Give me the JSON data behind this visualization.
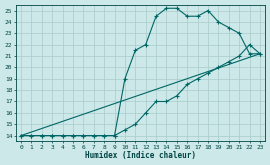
{
  "xlabel": "Humidex (Indice chaleur)",
  "background_color": "#cce8e8",
  "grid_color": "#aacccc",
  "line_color": "#006666",
  "xlim": [
    -0.5,
    23.5
  ],
  "ylim": [
    13.5,
    25.5
  ],
  "xticks": [
    0,
    1,
    2,
    3,
    4,
    5,
    6,
    7,
    8,
    9,
    10,
    11,
    12,
    13,
    14,
    15,
    16,
    17,
    18,
    19,
    20,
    21,
    22,
    23
  ],
  "yticks": [
    14,
    15,
    16,
    17,
    18,
    19,
    20,
    21,
    22,
    23,
    24,
    25
  ],
  "line1_x": [
    0,
    1,
    2,
    3,
    4,
    5,
    6,
    7,
    8,
    9,
    10,
    11,
    12,
    13,
    14,
    15,
    16,
    17,
    18,
    19,
    20,
    21,
    22,
    23
  ],
  "line1_y": [
    14,
    14,
    14,
    14,
    14,
    14,
    14,
    14,
    14,
    14,
    14.5,
    15,
    16,
    17,
    17,
    17.5,
    18.5,
    19,
    19.5,
    20,
    20.5,
    21,
    22,
    21.2
  ],
  "line2_x": [
    0,
    1,
    2,
    3,
    4,
    5,
    6,
    7,
    8,
    9,
    10,
    11,
    12,
    13,
    14,
    15,
    16,
    17,
    18,
    19,
    20,
    21,
    22,
    23
  ],
  "line2_y": [
    14,
    14,
    14,
    14,
    14,
    14,
    14,
    14,
    14,
    14,
    19,
    21.5,
    22,
    24.5,
    25.2,
    25.2,
    24.5,
    24.5,
    25,
    24,
    23.5,
    23,
    21.2,
    21.2
  ],
  "line3_x": [
    0,
    23
  ],
  "line3_y": [
    14,
    21.2
  ]
}
